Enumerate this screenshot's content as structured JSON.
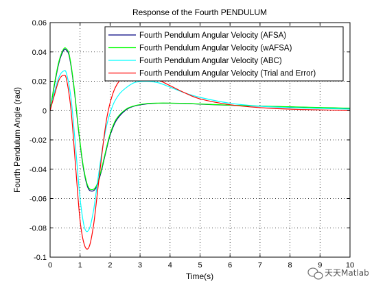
{
  "chart_data": {
    "type": "line",
    "title": "Response of the Fourth PENDULUM",
    "xlabel": "Time(s)",
    "ylabel": "Fourth Pendulum Angle (rad)",
    "xlim": [
      0,
      10
    ],
    "ylim": [
      -0.1,
      0.06
    ],
    "xticks": [
      0,
      1,
      2,
      3,
      4,
      5,
      6,
      7,
      8,
      9,
      10
    ],
    "yticks": [
      0.06,
      0.04,
      0.02,
      0,
      -0.02,
      -0.04,
      -0.06,
      -0.08,
      -0.1
    ],
    "grid": true,
    "legend_position": "top-right",
    "series": [
      {
        "name": "Fourth Pendulum Angular Velocity (AFSA)",
        "color": "#00007f",
        "x": [
          0,
          0.15,
          0.3,
          0.45,
          0.55,
          0.65,
          0.8,
          0.95,
          1.1,
          1.25,
          1.4,
          1.55,
          1.7,
          1.85,
          2.0,
          2.2,
          2.5,
          2.8,
          3.2,
          3.6,
          4.0,
          4.5,
          5.0,
          6.0,
          7.0,
          8.0,
          9.0,
          10.0
        ],
        "y": [
          0,
          0.018,
          0.033,
          0.041,
          0.041,
          0.036,
          0.015,
          -0.014,
          -0.038,
          -0.052,
          -0.055,
          -0.052,
          -0.042,
          -0.029,
          -0.017,
          -0.007,
          0.0,
          0.003,
          0.0045,
          0.005,
          0.005,
          0.0048,
          0.0044,
          0.0036,
          0.003,
          0.0025,
          0.002,
          0.0015
        ]
      },
      {
        "name": "Fourth Pendulum Angular Velocity (wAFSA)",
        "color": "#00ff00",
        "x": [
          0,
          0.15,
          0.3,
          0.45,
          0.55,
          0.65,
          0.8,
          0.95,
          1.1,
          1.25,
          1.4,
          1.55,
          1.7,
          1.85,
          2.0,
          2.2,
          2.5,
          2.8,
          3.2,
          3.6,
          4.0,
          4.5,
          5.0,
          6.0,
          7.0,
          8.0,
          9.0,
          10.0
        ],
        "y": [
          0,
          0.019,
          0.034,
          0.042,
          0.042,
          0.037,
          0.016,
          -0.013,
          -0.037,
          -0.051,
          -0.054,
          -0.051,
          -0.041,
          -0.028,
          -0.016,
          -0.006,
          0.0005,
          0.0032,
          0.0047,
          0.0051,
          0.0051,
          0.0049,
          0.0045,
          0.0037,
          0.0031,
          0.0026,
          0.0021,
          0.0016
        ]
      },
      {
        "name": "Fourth Pendulum Angular Velocity (ABC)",
        "color": "#00ffff",
        "x": [
          0,
          0.15,
          0.3,
          0.45,
          0.55,
          0.7,
          0.85,
          1.0,
          1.15,
          1.3,
          1.45,
          1.6,
          1.75,
          1.9,
          2.1,
          2.3,
          2.5,
          2.8,
          3.2,
          3.6,
          4.0,
          4.5,
          5.0,
          6.0,
          7.0,
          8.0,
          9.0,
          10.0
        ],
        "y": [
          0,
          0.013,
          0.023,
          0.027,
          0.025,
          0.008,
          -0.025,
          -0.06,
          -0.08,
          -0.081,
          -0.068,
          -0.046,
          -0.025,
          -0.009,
          0.004,
          0.011,
          0.015,
          0.019,
          0.02,
          0.019,
          0.016,
          0.012,
          0.009,
          0.005,
          0.003,
          0.002,
          0.0015,
          0.001
        ]
      },
      {
        "name": "Fourth Pendulum Angular Velocity (Trial and Error)",
        "color": "#ff0000",
        "x": [
          0,
          0.15,
          0.3,
          0.45,
          0.55,
          0.7,
          0.85,
          1.0,
          1.15,
          1.3,
          1.45,
          1.6,
          1.75,
          1.9,
          2.1,
          2.3,
          2.5,
          2.8,
          3.2,
          3.6,
          4.0,
          4.5,
          5.0,
          6.0,
          7.0,
          8.0,
          9.0,
          10.0
        ],
        "y": [
          0,
          0.011,
          0.021,
          0.024,
          0.021,
          0.0,
          -0.038,
          -0.075,
          -0.092,
          -0.093,
          -0.078,
          -0.052,
          -0.026,
          -0.004,
          0.012,
          0.02,
          0.023,
          0.025,
          0.024,
          0.021,
          0.017,
          0.012,
          0.008,
          0.004,
          0.002,
          0.001,
          0.0005,
          0.0
        ]
      }
    ]
  },
  "watermark": {
    "text": "天天Matlab",
    "icon": "wechat-icon"
  }
}
